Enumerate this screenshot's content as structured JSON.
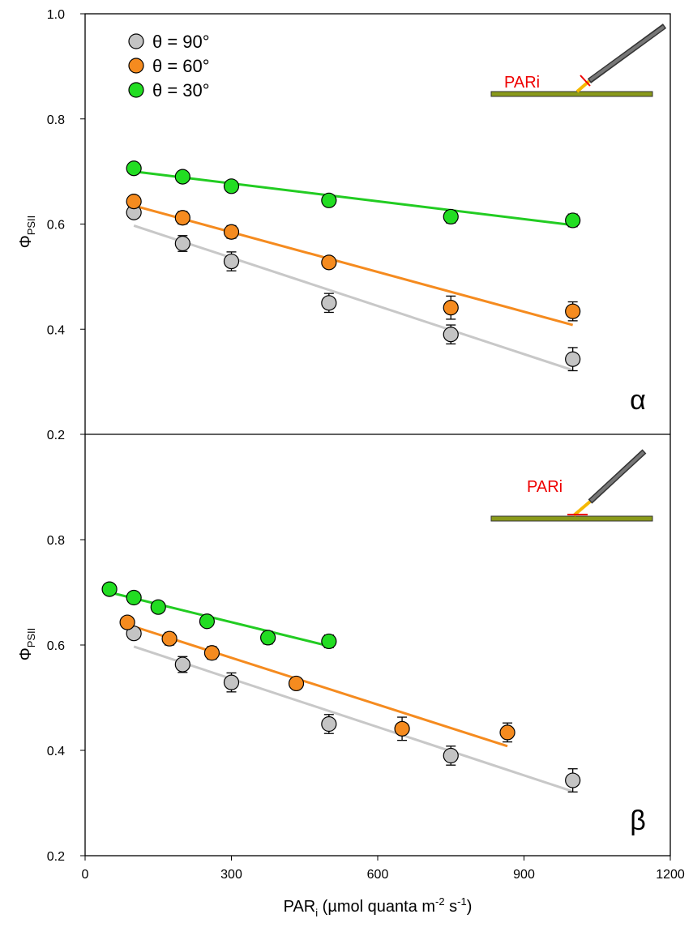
{
  "chart_data": [
    {
      "type": "scatter",
      "panel_label": "α",
      "annotation": "PARi",
      "y_label": {
        "symbol": "Φ",
        "subscript": "PSII"
      },
      "xlim": [
        0,
        1200
      ],
      "ylim": [
        0.2,
        1.0
      ],
      "yticks": [
        0.2,
        0.4,
        0.6,
        0.8,
        {
          "value": 1.0,
          "label": "1.0"
        }
      ],
      "legend": "upper left",
      "series": [
        {
          "name": "θ = 90°",
          "color": "#c4c4c4",
          "line_color": "#c8c8c8",
          "x": [
            100,
            200,
            300,
            500,
            750,
            1000
          ],
          "values": [
            0.622,
            0.563,
            0.529,
            0.45,
            0.39,
            0.343
          ],
          "errors": [
            0.01,
            0.015,
            0.018,
            0.018,
            0.018,
            0.022
          ],
          "fit_x": [
            100,
            1000
          ],
          "fit_values": [
            0.597,
            0.322
          ]
        },
        {
          "name": "θ = 60°",
          "color": "#f58b1f",
          "line_color": "#f58b1f",
          "x": [
            100,
            200,
            300,
            500,
            750,
            1000
          ],
          "values": [
            0.643,
            0.612,
            0.585,
            0.527,
            0.441,
            0.434
          ],
          "errors": [
            0.01,
            0.012,
            0.012,
            0.01,
            0.022,
            0.018
          ],
          "fit_x": [
            100,
            1000
          ],
          "fit_values": [
            0.635,
            0.408
          ]
        },
        {
          "name": "θ = 30°",
          "color": "#22dd22",
          "line_color": "#22cc22",
          "x": [
            100,
            200,
            300,
            500,
            750,
            1000
          ],
          "values": [
            0.706,
            0.69,
            0.672,
            0.645,
            0.614,
            0.607
          ],
          "errors": [
            0.006,
            0.008,
            0.008,
            0.01,
            0.012,
            0.012
          ],
          "fit_x": [
            100,
            1000
          ],
          "fit_values": [
            0.7,
            0.598
          ]
        }
      ]
    },
    {
      "type": "scatter",
      "panel_label": "β",
      "annotation": "PARi",
      "y_label": {
        "symbol": "Φ",
        "subscript": "PSII"
      },
      "x_label": {
        "main": "PAR",
        "sub": "i",
        "unit_a": " (µmol quanta m",
        "exp_a": "-2",
        "unit_b": " s",
        "exp_b": "-1",
        "unit_c": ")"
      },
      "xlim": [
        0,
        1200
      ],
      "xticks": [
        0,
        300,
        600,
        900,
        1200
      ],
      "ylim": [
        0.2,
        1.0
      ],
      "yticks": [
        0.2,
        0.4,
        0.6,
        0.8
      ],
      "series": [
        {
          "color": "#c4c4c4",
          "line_color": "#c8c8c8",
          "x": [
            100,
            200,
            300,
            500,
            750,
            1000
          ],
          "values": [
            0.622,
            0.563,
            0.529,
            0.45,
            0.39,
            0.343
          ],
          "errors": [
            0.01,
            0.015,
            0.018,
            0.018,
            0.018,
            0.022
          ],
          "fit_x": [
            100,
            1000
          ],
          "fit_values": [
            0.597,
            0.322
          ]
        },
        {
          "color": "#f58b1f",
          "line_color": "#f58b1f",
          "x": [
            86.6,
            173,
            260,
            433,
            650,
            866
          ],
          "values": [
            0.643,
            0.612,
            0.585,
            0.527,
            0.441,
            0.434
          ],
          "errors": [
            0.01,
            0.012,
            0.012,
            0.01,
            0.022,
            0.018
          ],
          "fit_x": [
            100,
            866
          ],
          "fit_values": [
            0.635,
            0.408
          ]
        },
        {
          "color": "#22dd22",
          "line_color": "#22cc22",
          "x": [
            50,
            100,
            150,
            250,
            375,
            500
          ],
          "values": [
            0.706,
            0.69,
            0.672,
            0.645,
            0.614,
            0.607
          ],
          "errors": [
            0.006,
            0.008,
            0.008,
            0.01,
            0.012,
            0.012
          ],
          "fit_x": [
            50,
            500
          ],
          "fit_values": [
            0.7,
            0.598
          ]
        }
      ]
    }
  ]
}
